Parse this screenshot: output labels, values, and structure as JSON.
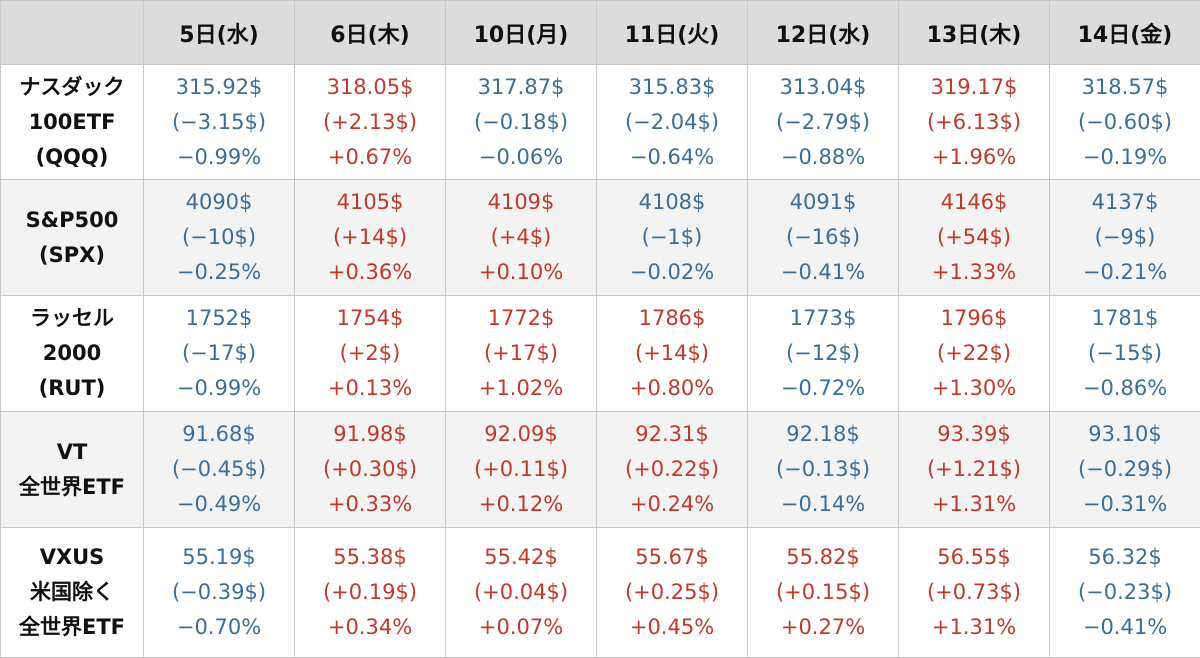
{
  "columns": [
    "5日(水)",
    "6日(木)",
    "10日(月)",
    "11日(火)",
    "12日(水)",
    "13日(木)",
    "14日(金)"
  ],
  "colors": {
    "up": "#c0392b",
    "down": "#3a6e99",
    "header_bg": "#dcdcdc",
    "alt_row_bg": "#f3f3f3"
  },
  "rows": [
    {
      "name": [
        "ナスダック",
        "100ETF",
        "(QQQ)"
      ],
      "cells": [
        {
          "dir": "down",
          "price": "315.92$",
          "change": "(−3.15$)",
          "pct": "−0.99%"
        },
        {
          "dir": "up",
          "price": "318.05$",
          "change": "(+2.13$)",
          "pct": "+0.67%"
        },
        {
          "dir": "down",
          "price": "317.87$",
          "change": "(−0.18$)",
          "pct": "−0.06%"
        },
        {
          "dir": "down",
          "price": "315.83$",
          "change": "(−2.04$)",
          "pct": "−0.64%"
        },
        {
          "dir": "down",
          "price": "313.04$",
          "change": "(−2.79$)",
          "pct": "−0.88%"
        },
        {
          "dir": "up",
          "price": "319.17$",
          "change": "(+6.13$)",
          "pct": "+1.96%"
        },
        {
          "dir": "down",
          "price": "318.57$",
          "change": "(−0.60$)",
          "pct": "−0.19%"
        }
      ]
    },
    {
      "name": [
        "S&P500",
        "(SPX)"
      ],
      "cells": [
        {
          "dir": "down",
          "price": "4090$",
          "change": "(−10$)",
          "pct": "−0.25%"
        },
        {
          "dir": "up",
          "price": "4105$",
          "change": "(+14$)",
          "pct": "+0.36%"
        },
        {
          "dir": "up",
          "price": "4109$",
          "change": "(+4$)",
          "pct": "+0.10%"
        },
        {
          "dir": "down",
          "price": "4108$",
          "change": "(−1$)",
          "pct": "−0.02%"
        },
        {
          "dir": "down",
          "price": "4091$",
          "change": "(−16$)",
          "pct": "−0.41%"
        },
        {
          "dir": "up",
          "price": "4146$",
          "change": "(+54$)",
          "pct": "+1.33%"
        },
        {
          "dir": "down",
          "price": "4137$",
          "change": "(−9$)",
          "pct": "−0.21%"
        }
      ]
    },
    {
      "name": [
        "ラッセル",
        "2000",
        "(RUT)"
      ],
      "cells": [
        {
          "dir": "down",
          "price": "1752$",
          "change": "(−17$)",
          "pct": "−0.99%"
        },
        {
          "dir": "up",
          "price": "1754$",
          "change": "(+2$)",
          "pct": "+0.13%"
        },
        {
          "dir": "up",
          "price": "1772$",
          "change": "(+17$)",
          "pct": "+1.02%"
        },
        {
          "dir": "up",
          "price": "1786$",
          "change": "(+14$)",
          "pct": "+0.80%"
        },
        {
          "dir": "down",
          "price": "1773$",
          "change": "(−12$)",
          "pct": "−0.72%"
        },
        {
          "dir": "up",
          "price": "1796$",
          "change": "(+22$)",
          "pct": "+1.30%"
        },
        {
          "dir": "down",
          "price": "1781$",
          "change": "(−15$)",
          "pct": "−0.86%"
        }
      ]
    },
    {
      "name": [
        "VT",
        "全世界ETF"
      ],
      "cells": [
        {
          "dir": "down",
          "price": "91.68$",
          "change": "(−0.45$)",
          "pct": "−0.49%"
        },
        {
          "dir": "up",
          "price": "91.98$",
          "change": "(+0.30$)",
          "pct": "+0.33%"
        },
        {
          "dir": "up",
          "price": "92.09$",
          "change": "(+0.11$)",
          "pct": "+0.12%"
        },
        {
          "dir": "up",
          "price": "92.31$",
          "change": "(+0.22$)",
          "pct": "+0.24%"
        },
        {
          "dir": "down",
          "price": "92.18$",
          "change": "(−0.13$)",
          "pct": "−0.14%"
        },
        {
          "dir": "up",
          "price": "93.39$",
          "change": "(+1.21$)",
          "pct": "+1.31%"
        },
        {
          "dir": "down",
          "price": "93.10$",
          "change": "(−0.29$)",
          "pct": "−0.31%"
        }
      ]
    },
    {
      "name": [
        "VXUS",
        "米国除く",
        "全世界ETF"
      ],
      "cells": [
        {
          "dir": "down",
          "price": "55.19$",
          "change": "(−0.39$)",
          "pct": "−0.70%"
        },
        {
          "dir": "up",
          "price": "55.38$",
          "change": "(+0.19$)",
          "pct": "+0.34%"
        },
        {
          "dir": "up",
          "price": "55.42$",
          "change": "(+0.04$)",
          "pct": "+0.07%"
        },
        {
          "dir": "up",
          "price": "55.67$",
          "change": "(+0.25$)",
          "pct": "+0.45%"
        },
        {
          "dir": "up",
          "price": "55.82$",
          "change": "(+0.15$)",
          "pct": "+0.27%"
        },
        {
          "dir": "up",
          "price": "56.55$",
          "change": "(+0.73$)",
          "pct": "+1.31%"
        },
        {
          "dir": "down",
          "price": "56.32$",
          "change": "(−0.23$)",
          "pct": "−0.41%"
        }
      ]
    }
  ]
}
